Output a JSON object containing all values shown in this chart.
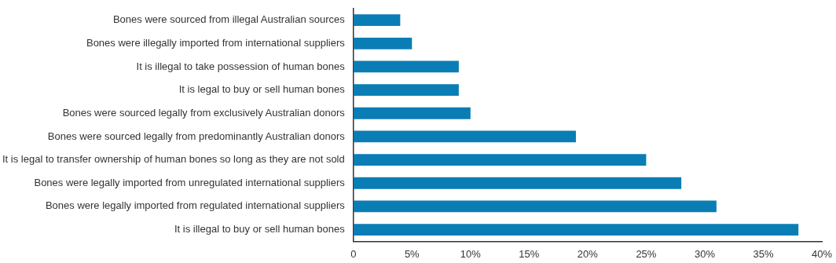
{
  "chart_data": {
    "type": "bar",
    "orientation": "horizontal",
    "categories": [
      "Bones were sourced from illegal Australian sources",
      "Bones were illegally imported from international suppliers",
      "It is illegal to take possession of human bones",
      "It is legal to buy or sell human bones",
      "Bones were sourced legally from exclusively Australian donors",
      "Bones were sourced legally from predominantly Australian donors",
      "It is legal to transfer ownership of human bones so long as they are not sold",
      "Bones were legally imported from unregulated international suppliers",
      "Bones were legally imported from regulated international suppliers",
      "It is illegal to buy or sell human bones"
    ],
    "values": [
      4,
      5,
      9,
      9,
      10,
      19,
      25,
      28,
      31,
      38
    ],
    "color": "#0a7db5",
    "xlim": [
      0,
      40
    ],
    "xticks": [
      0,
      {
        "value": 5,
        "label": "5%"
      },
      {
        "value": 10,
        "label": "10%"
      },
      {
        "value": 15,
        "label": "15%"
      },
      {
        "value": 20,
        "label": "20%"
      },
      {
        "value": 25,
        "label": "25%"
      },
      {
        "value": 30,
        "label": "30%"
      },
      {
        "value": 35,
        "label": "35%"
      },
      {
        "value": 40,
        "label": "40%"
      }
    ],
    "grid": false,
    "legend": false
  }
}
